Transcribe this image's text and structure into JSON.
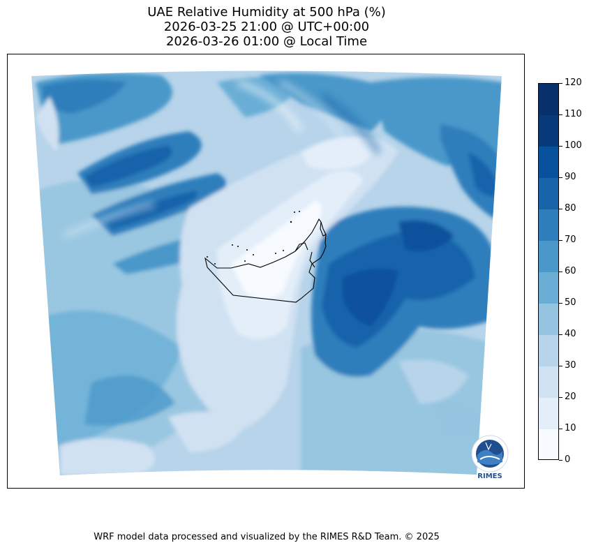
{
  "title": {
    "line1": "UAE Relative Humidity at 500 hPa (%)",
    "line2": "2026-03-25 21:00 @ UTC+00:00",
    "line3": "2026-03-26 01:00 @ Local Time"
  },
  "colorbar": {
    "ticks": [
      "0",
      "10",
      "20",
      "30",
      "40",
      "50",
      "60",
      "70",
      "80",
      "90",
      "100",
      "110",
      "120"
    ],
    "colors": [
      "#f7fbff",
      "#e3eef9",
      "#d0e1f2",
      "#b7d4ea",
      "#94c4df",
      "#6aaed6",
      "#4a98c9",
      "#2e7ebc",
      "#1764ab",
      "#08519c",
      "#083a7a",
      "#08306b"
    ]
  },
  "logo": {
    "text": "RIMES"
  },
  "footer": "WRF model data processed and visualized by the RIMES R&D Team. © 2025"
}
